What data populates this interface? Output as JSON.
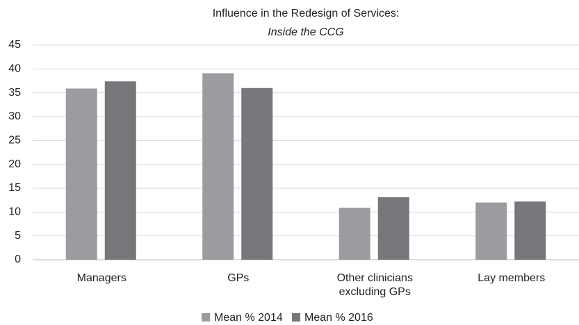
{
  "chart_data": {
    "type": "bar",
    "title": "Influence in the Redesign of Services:",
    "subtitle": "Inside the CCG",
    "categories": [
      "Managers",
      "GPs",
      "Other clinicians excluding GPs",
      "Lay members"
    ],
    "series": [
      {
        "name": "Mean % 2014",
        "color": "#9a9c9f",
        "values": [
          35.9,
          39.1,
          10.9,
          12.0
        ]
      },
      {
        "name": "Mean % 2016",
        "color": "#76777b",
        "values": [
          37.4,
          36.0,
          13.1,
          12.2
        ]
      }
    ],
    "ylim": [
      0,
      45
    ],
    "yticks": [
      0,
      5,
      10,
      15,
      20,
      25,
      30,
      35,
      40,
      45
    ],
    "grid": true,
    "legend": "bottom"
  }
}
